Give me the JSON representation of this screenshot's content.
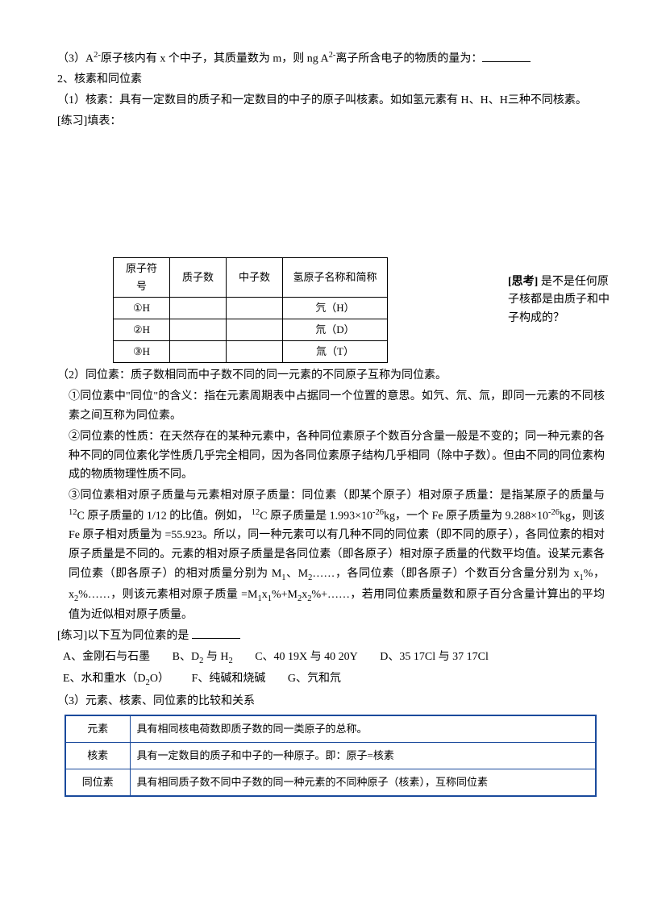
{
  "p1_prefix": "（3）A",
  "p1_sup": "2-",
  "p1_mid": "原子核内有 x 个中子，其质量数为 m，则 ng A",
  "p1_sup2": "2-",
  "p1_suffix": "离子所含电子的物质的量为：",
  "p2": "2、核素和同位素",
  "p3": "（1）核素：具有一定数目的质子和一定数目的中子的原子叫核素。如如氢元素有 H、H、H三种不同核素。",
  "p4_label": "[练习]",
  "p4_text": "填表：",
  "t1": {
    "h1": "原子符号",
    "h2": "质子数",
    "h3": "中子数",
    "h4": "氢原子名称和简称",
    "r1c1": "①H",
    "r1c4": "氕（H）",
    "r2c1": "②H",
    "r2c4": "氘（D）",
    "r3c1": "③H",
    "r3c4": "氚（T）"
  },
  "side_label": "[思考]",
  "side_text": "  是不是任何原子核都是由质子和中子构成的？",
  "p5": "（2）同位素：质子数相同而中子数不同的同一元素的不同原子互称为同位素。",
  "p6": "①同位素中\"同位\"的含义：指在元素周期表中占据同一个位置的意思。如氕、氘、氚，即同一元素的不同核素之间互称为同位素。",
  "p7": "②同位素的性质：在天然存在的某种元素中，各种同位素原子个数百分含量一般是不变的；同一种元素的各种不同的同位素化学性质几乎完全相同，因为各同位素原子结构几乎相同（除中子数）。但由不同的同位素构成的物质物理性质不同。",
  "p8a": "③同位素相对原子质量与元素相对原子质量：同位素（即某个原子）相对原子质量：是指某原子的质量与 ",
  "p8_c12a": "12",
  "p8b": "C 原子质量的  1/12 的比值。例如，  ",
  "p8_c12b": "12",
  "p8c": "C 原子质量是 1.993×10",
  "p8_exp1": "-26",
  "p8d": "kg，一个 Fe 原子质量为 9.288×10",
  "p8_exp2": "-26",
  "p8e": "kg，则该 Fe 原子相对质量为  =55.923。所以，同一种元素可以有几种不同的同位素（即不同的原子），各同位素的相对原子质量是不同的。元素的相对原子质量是各同位素（即各原子）相对原子质量的代数平均值。设某元素各同位素（即各原子）的相对质量分别为 M",
  "p8_s1": "1",
  "p8f": "、M",
  "p8_s2": "2",
  "p8g": "……，各同位素（即各原子）个数百分含量分别为 x",
  "p8_s3": "1",
  "p8h": "%，x",
  "p8_s4": "2",
  "p8i": "%……，则该元素相对原子质量  =M",
  "p8_s5": "1",
  "p8j": "x",
  "p8_s6": "1",
  "p8k": "%+M",
  "p8_s7": "2",
  "p8l": "x",
  "p8_s8": "2",
  "p8m": "%+……，若用同位素质量数和原子百分含量计算出的平均值为近似相对原子质量。",
  "p9_label": "[练习]",
  "p9_text": "以下互为同位素的是  ",
  "optA_pre": "A、金刚石与石墨",
  "optB_pre": "B、D",
  "optB_sub": "2",
  "optB_mid": " 与 H",
  "optB_sub2": "2",
  "optC": "C、40 19X 与 40 20Y",
  "optD": "D、35 17Cl 与 37 17Cl",
  "optE_pre": "E、水和重水（D",
  "optE_sub": "2",
  "optE_post": "O）",
  "optF": "F、纯碱和烧碱",
  "optG": "G、氕和氘",
  "p10": "（3）元素、核素、同位素的比较和关系",
  "t2": {
    "r1h": "元素",
    "r1d": "具有相同核电荷数即质子数的同一类原子的总称。",
    "r2h": "核素",
    "r2d": "具有一定数目的质子和中子的一种原子。即：原子=核素",
    "r3h": "同位素",
    "r3d": "具有相同质子数不同中子数的同一种元素的不同种原子（核素），互称同位素"
  }
}
